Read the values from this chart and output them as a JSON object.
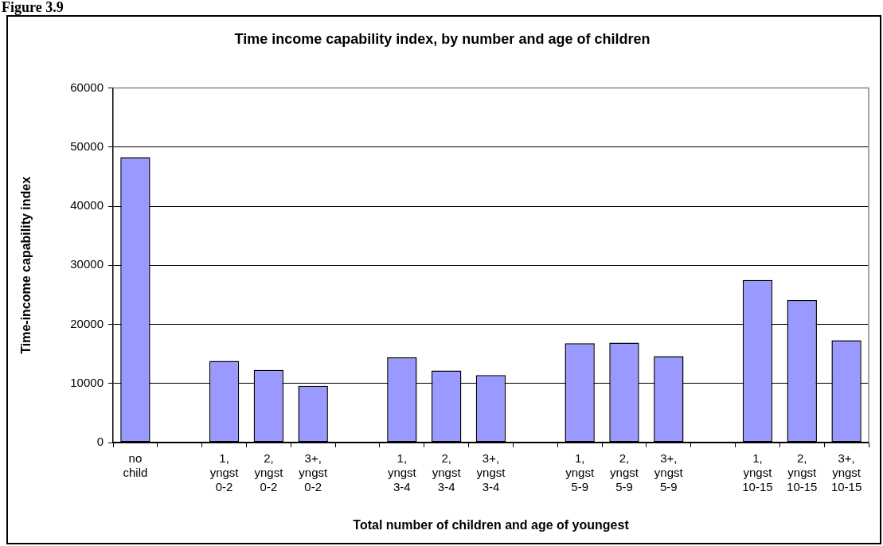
{
  "chart_data": {
    "type": "bar",
    "title": "Time income capability index, by number and age of children",
    "xlabel": "Total number of children and age of youngest",
    "ylabel": "Time-income capability index",
    "categories": [
      "no child",
      null,
      "1, yngst 0-2",
      "2, yngst 0-2",
      "3+, yngst 0-2",
      null,
      "1, yngst 3-4",
      "2, yngst 3-4",
      "3+, yngst 3-4",
      null,
      "1, yngst 5-9",
      "2, yngst 5-9",
      "3+, yngst 5-9",
      null,
      "1, yngst 10-15",
      "2, yngst 10-15",
      "3+, yngst 10-15"
    ],
    "values": [
      48300,
      null,
      13800,
      12300,
      9600,
      null,
      14400,
      12200,
      11400,
      null,
      16800,
      16900,
      14600,
      null,
      27500,
      24100,
      17300
    ],
    "color": "#9999ff",
    "ylim": [
      0,
      60000
    ],
    "yticks": [
      0,
      10000,
      20000,
      30000,
      40000,
      50000,
      60000
    ],
    "grid": "y",
    "legend": false,
    "annotations": [
      "Figure 3.9"
    ]
  }
}
